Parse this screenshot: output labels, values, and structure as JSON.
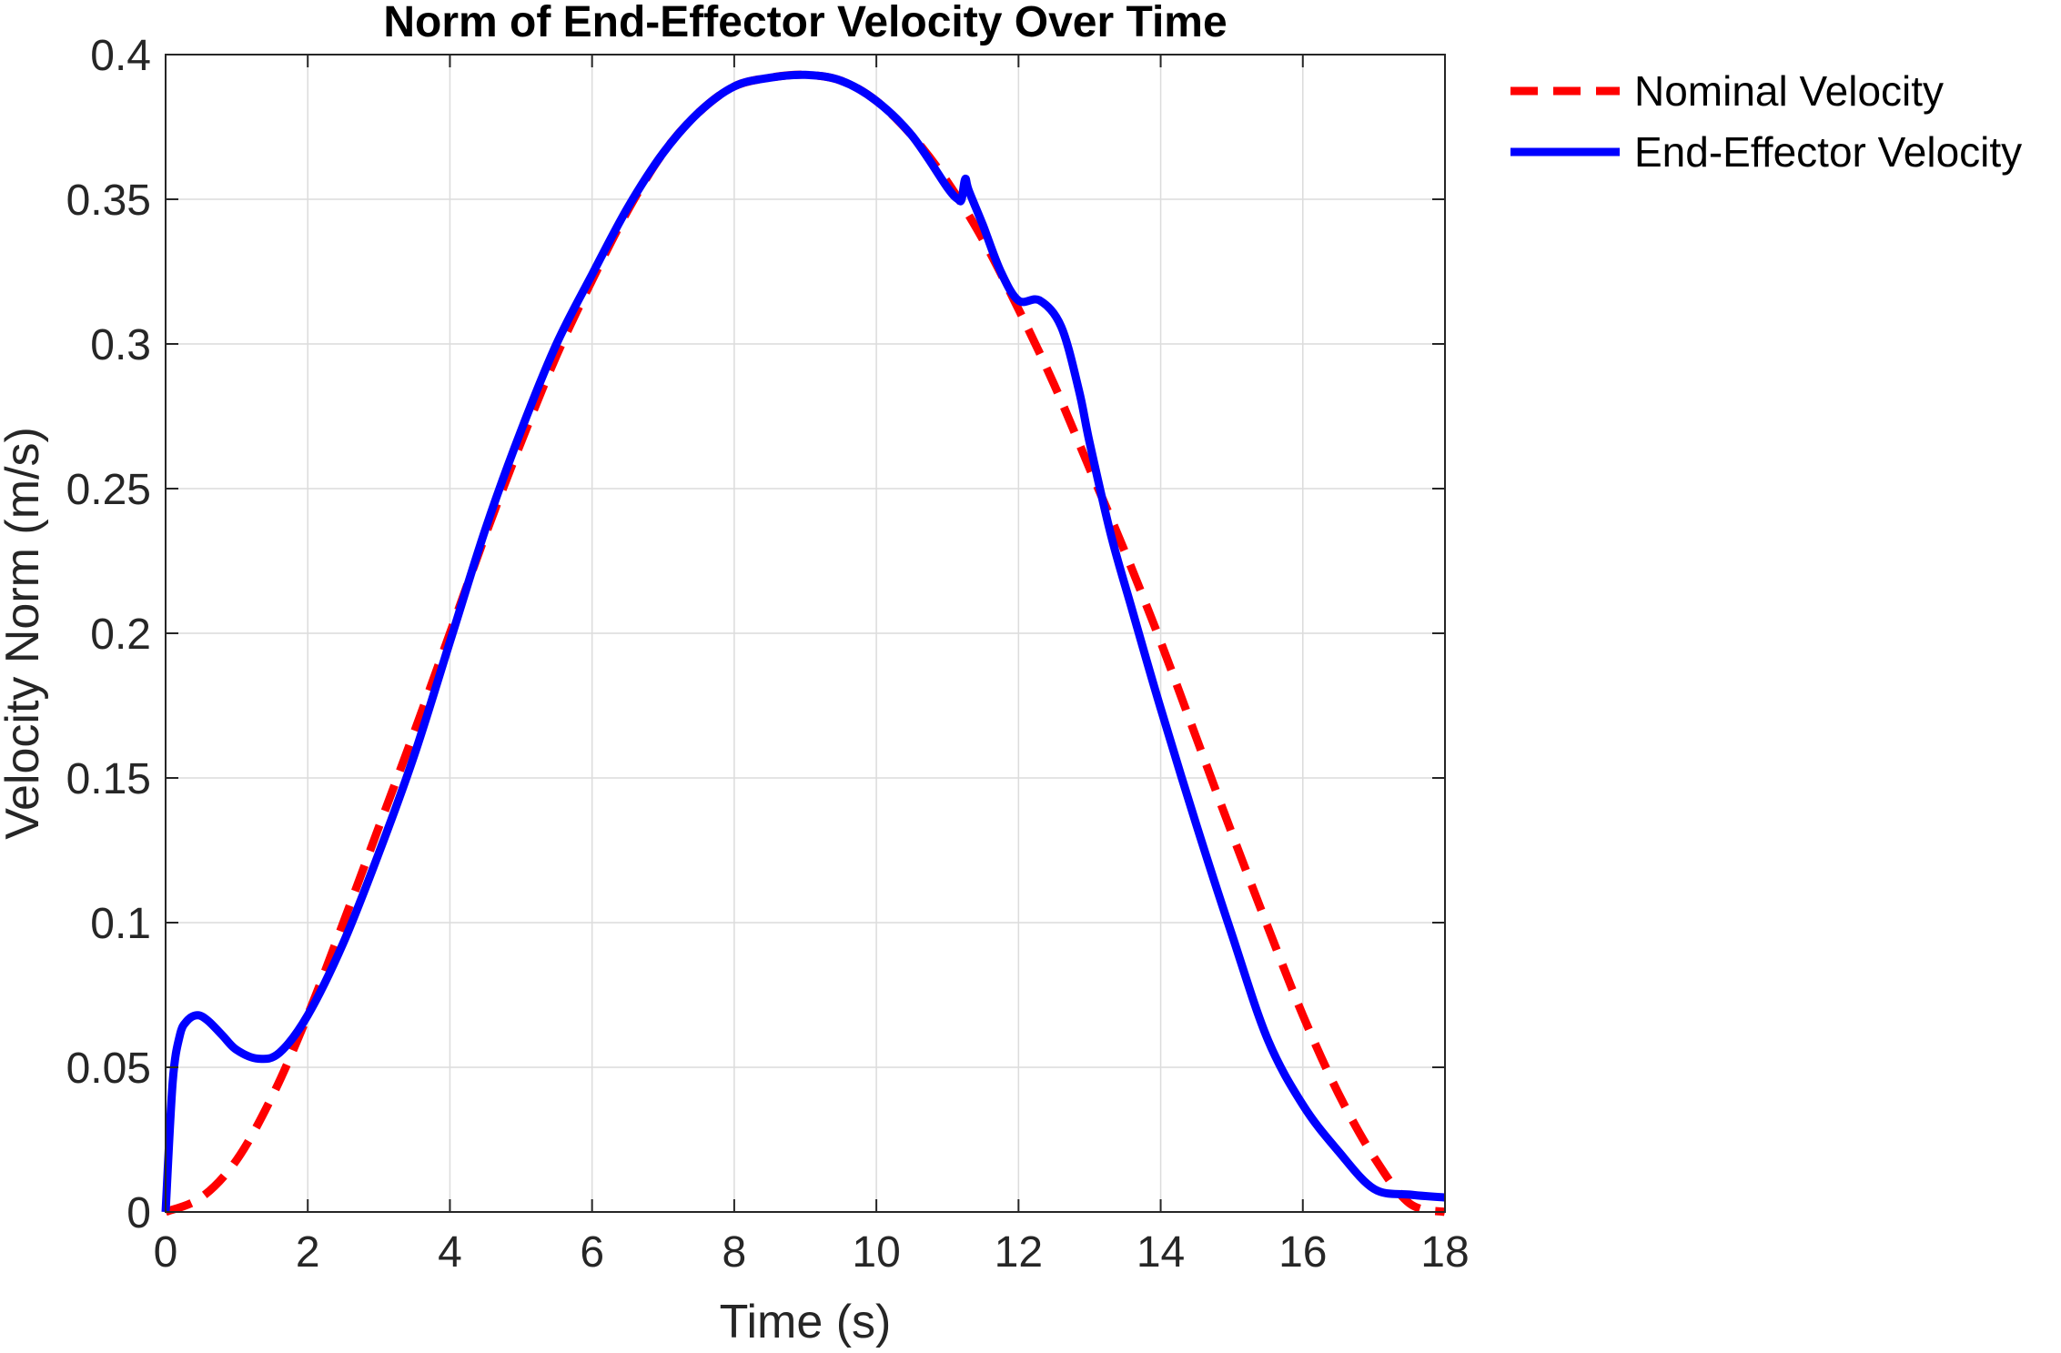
{
  "chart_data": {
    "type": "line",
    "title": "Norm of End-Effector Velocity Over Time",
    "xlabel": "Time (s)",
    "ylabel": "Velocity Norm (m/s)",
    "xlim": [
      0,
      18
    ],
    "ylim": [
      0,
      0.4
    ],
    "xticks": [
      0,
      2,
      4,
      6,
      8,
      10,
      12,
      14,
      16,
      18
    ],
    "yticks": [
      0,
      0.05,
      0.1,
      0.15,
      0.2,
      0.25,
      0.3,
      0.35,
      0.4
    ],
    "xtick_labels": [
      "0",
      "2",
      "4",
      "6",
      "8",
      "10",
      "12",
      "14",
      "16",
      "18"
    ],
    "ytick_labels": [
      "0",
      "0.05",
      "0.1",
      "0.15",
      "0.2",
      "0.25",
      "0.3",
      "0.35",
      "0.4"
    ],
    "grid": true,
    "legend_position": "outside-top-right",
    "series": [
      {
        "name": "Nominal Velocity",
        "color": "#ff0000",
        "style": "dashed",
        "x": [
          0,
          0.5,
          1,
          1.5,
          2,
          2.5,
          3,
          3.5,
          4,
          4.5,
          5,
          5.5,
          6,
          6.5,
          7,
          7.5,
          8,
          8.5,
          9,
          9.5,
          10,
          10.5,
          11,
          11.5,
          12,
          12.5,
          13,
          13.5,
          14,
          14.5,
          15,
          15.5,
          16,
          16.5,
          17,
          17.5,
          18
        ],
        "y": [
          0,
          0.005,
          0.018,
          0.04,
          0.068,
          0.1,
          0.133,
          0.166,
          0.2,
          0.234,
          0.266,
          0.296,
          0.322,
          0.346,
          0.366,
          0.38,
          0.389,
          0.392,
          0.393,
          0.391,
          0.384,
          0.372,
          0.356,
          0.336,
          0.312,
          0.286,
          0.257,
          0.228,
          0.197,
          0.164,
          0.131,
          0.099,
          0.068,
          0.041,
          0.019,
          0.003,
          0
        ]
      },
      {
        "name": "End-Effector Velocity",
        "color": "#0000ff",
        "style": "solid",
        "x": [
          0,
          0.1,
          0.2,
          0.3,
          0.45,
          0.6,
          0.8,
          1,
          1.3,
          1.6,
          2,
          2.5,
          3,
          3.5,
          4,
          4.5,
          5,
          5.5,
          6,
          6.5,
          7,
          7.5,
          8,
          8.5,
          9,
          9.5,
          10,
          10.5,
          11,
          11.15,
          11.2,
          11.25,
          11.3,
          11.5,
          11.75,
          12,
          12.3,
          12.6,
          12.85,
          13,
          13.3,
          13.6,
          14,
          14.5,
          15,
          15.5,
          16,
          16.5,
          17,
          17.5,
          18
        ],
        "y": [
          0,
          0.045,
          0.061,
          0.066,
          0.068,
          0.066,
          0.061,
          0.056,
          0.053,
          0.055,
          0.068,
          0.093,
          0.124,
          0.158,
          0.197,
          0.236,
          0.27,
          0.3,
          0.324,
          0.347,
          0.366,
          0.38,
          0.389,
          0.392,
          0.393,
          0.391,
          0.384,
          0.372,
          0.354,
          0.35,
          0.35,
          0.357,
          0.353,
          0.341,
          0.325,
          0.315,
          0.315,
          0.306,
          0.284,
          0.266,
          0.234,
          0.208,
          0.174,
          0.134,
          0.096,
          0.06,
          0.037,
          0.021,
          0.008,
          0.006,
          0.005
        ]
      }
    ]
  }
}
